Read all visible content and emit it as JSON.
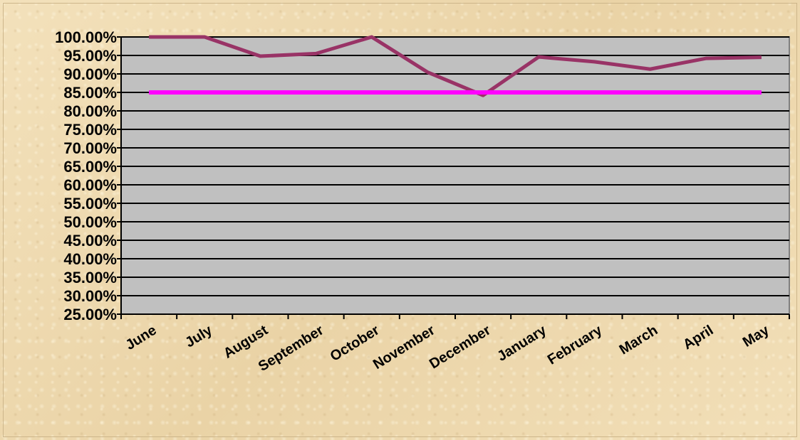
{
  "chart_data": {
    "type": "line",
    "title": "",
    "xlabel": "",
    "ylabel": "",
    "categories": [
      "June",
      "July",
      "August",
      "September",
      "October",
      "November",
      "December",
      "January",
      "February",
      "March",
      "April",
      "May"
    ],
    "series": [
      {
        "values": [
          100.0,
          100.0,
          94.8,
          95.5,
          100.0,
          90.5,
          84.2,
          94.6,
          93.3,
          91.3,
          94.2,
          94.5
        ],
        "color": "#993366"
      },
      {
        "values": [
          85,
          85,
          85,
          85,
          85,
          85,
          85,
          85,
          85,
          85,
          85,
          85
        ],
        "color": "#ff00ff"
      }
    ],
    "ylim": [
      25,
      100
    ],
    "y_ticks": [
      "25.00%",
      "30.00%",
      "35.00%",
      "40.00%",
      "45.00%",
      "50.00%",
      "55.00%",
      "60.00%",
      "65.00%",
      "70.00%",
      "75.00%",
      "80.00%",
      "85.00%",
      "90.00%",
      "95.00%",
      "100.00%"
    ],
    "grid": true,
    "plot_background": "#c0c0c0",
    "legend": "none"
  }
}
